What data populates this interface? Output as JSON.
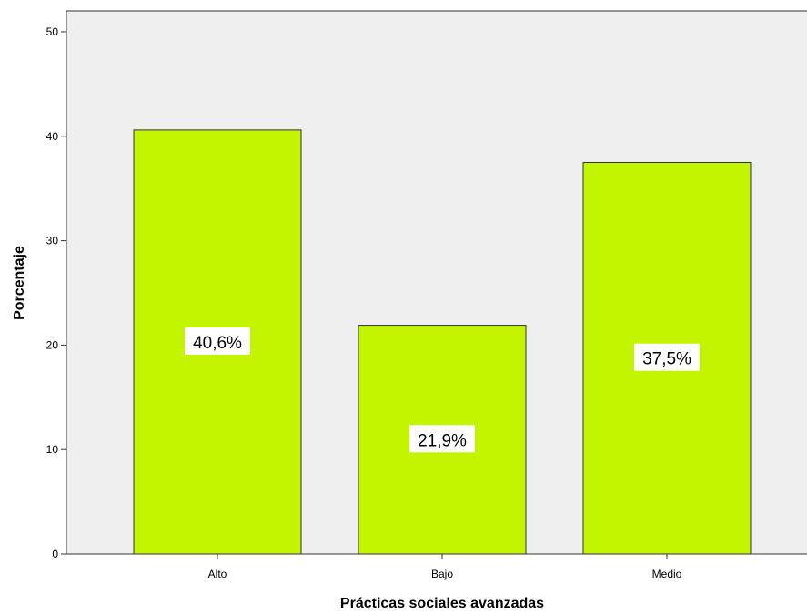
{
  "chart_data": {
    "type": "bar",
    "xlabel": "Prácticas sociales avanzadas",
    "ylabel": "Porcentaje",
    "categories": [
      "Alto",
      "Bajo",
      "Medio"
    ],
    "values": [
      40.6,
      21.9,
      37.5
    ],
    "data_labels": [
      "40,6%",
      "21,9%",
      "37,5%"
    ],
    "ylim": [
      0,
      52
    ],
    "yticks": [
      0,
      10,
      20,
      30,
      40,
      50
    ],
    "ytick_labels": [
      "0",
      "10",
      "20",
      "30",
      "40",
      "50"
    ],
    "grid": false,
    "legend": "none",
    "colors": {
      "bar_fill": "#c3f400",
      "bar_stroke": "#333333",
      "plot_background": "#efefef",
      "axis": "#333333",
      "label_box": "#ffffff"
    }
  }
}
